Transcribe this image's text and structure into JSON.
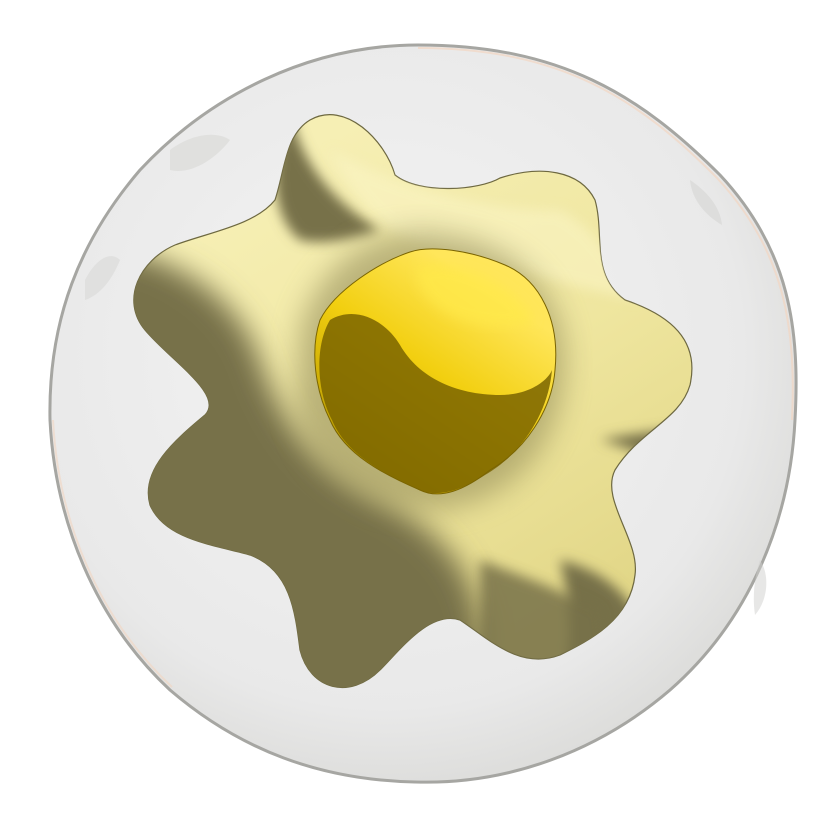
{
  "scene": {
    "background_color": "#ffffff",
    "outer_shell": {
      "shape": "translucent-sphere",
      "fill_color": "#ececec",
      "edge_color": "#9a9a96",
      "rim_tint": "#f2d6c2"
    },
    "middle_layer": {
      "shape": "six-lobed-gear",
      "lobes": 6,
      "lit_color": "#f0e8a2",
      "shadow_color": "#777148"
    },
    "inner_core": {
      "shape": "rounded-hexagonal-blob",
      "lit_color": "#f7d514",
      "shadow_color": "#7a6400"
    }
  }
}
